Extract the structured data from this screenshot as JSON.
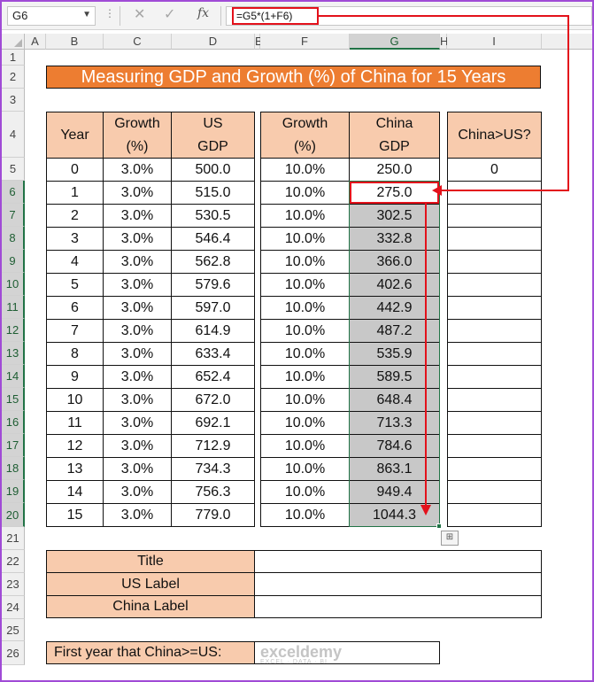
{
  "formula_bar": {
    "name_box": "G6",
    "cancel_icon": "✕",
    "enter_icon": "✓",
    "fx_label": "fx",
    "formula": "=G5*(1+F6)"
  },
  "columns": [
    "A",
    "B",
    "C",
    "D",
    "E",
    "F",
    "G",
    "H",
    "I"
  ],
  "rows": [
    "1",
    "2",
    "3",
    "4",
    "5",
    "6",
    "7",
    "8",
    "9",
    "10",
    "11",
    "12",
    "13",
    "14",
    "15",
    "16",
    "17",
    "18",
    "19",
    "20",
    "21",
    "22",
    "23",
    "24",
    "25",
    "26"
  ],
  "title": "Measuring GDP and Growth (%) of China for 15 Years",
  "headers": {
    "year": "Year",
    "growth_us_1": "Growth",
    "growth_us_2": "(%)",
    "us_gdp_1": "US",
    "us_gdp_2": "GDP",
    "growth_cn_1": "Growth",
    "growth_cn_2": "(%)",
    "cn_gdp_1": "China",
    "cn_gdp_2": "GDP",
    "china_gt_us": "China>US?"
  },
  "table": [
    {
      "year": "0",
      "us_growth": "3.0%",
      "us_gdp": "500.0",
      "cn_growth": "10.0%",
      "cn_gdp": "250.0",
      "china_gt_us": "0"
    },
    {
      "year": "1",
      "us_growth": "3.0%",
      "us_gdp": "515.0",
      "cn_growth": "10.0%",
      "cn_gdp": "275.0",
      "china_gt_us": ""
    },
    {
      "year": "2",
      "us_growth": "3.0%",
      "us_gdp": "530.5",
      "cn_growth": "10.0%",
      "cn_gdp": "302.5",
      "china_gt_us": ""
    },
    {
      "year": "3",
      "us_growth": "3.0%",
      "us_gdp": "546.4",
      "cn_growth": "10.0%",
      "cn_gdp": "332.8",
      "china_gt_us": ""
    },
    {
      "year": "4",
      "us_growth": "3.0%",
      "us_gdp": "562.8",
      "cn_growth": "10.0%",
      "cn_gdp": "366.0",
      "china_gt_us": ""
    },
    {
      "year": "5",
      "us_growth": "3.0%",
      "us_gdp": "579.6",
      "cn_growth": "10.0%",
      "cn_gdp": "402.6",
      "china_gt_us": ""
    },
    {
      "year": "6",
      "us_growth": "3.0%",
      "us_gdp": "597.0",
      "cn_growth": "10.0%",
      "cn_gdp": "442.9",
      "china_gt_us": ""
    },
    {
      "year": "7",
      "us_growth": "3.0%",
      "us_gdp": "614.9",
      "cn_growth": "10.0%",
      "cn_gdp": "487.2",
      "china_gt_us": ""
    },
    {
      "year": "8",
      "us_growth": "3.0%",
      "us_gdp": "633.4",
      "cn_growth": "10.0%",
      "cn_gdp": "535.9",
      "china_gt_us": ""
    },
    {
      "year": "9",
      "us_growth": "3.0%",
      "us_gdp": "652.4",
      "cn_growth": "10.0%",
      "cn_gdp": "589.5",
      "china_gt_us": ""
    },
    {
      "year": "10",
      "us_growth": "3.0%",
      "us_gdp": "672.0",
      "cn_growth": "10.0%",
      "cn_gdp": "648.4",
      "china_gt_us": ""
    },
    {
      "year": "11",
      "us_growth": "3.0%",
      "us_gdp": "692.1",
      "cn_growth": "10.0%",
      "cn_gdp": "713.3",
      "china_gt_us": ""
    },
    {
      "year": "12",
      "us_growth": "3.0%",
      "us_gdp": "712.9",
      "cn_growth": "10.0%",
      "cn_gdp": "784.6",
      "china_gt_us": ""
    },
    {
      "year": "13",
      "us_growth": "3.0%",
      "us_gdp": "734.3",
      "cn_growth": "10.0%",
      "cn_gdp": "863.1",
      "china_gt_us": ""
    },
    {
      "year": "14",
      "us_growth": "3.0%",
      "us_gdp": "756.3",
      "cn_growth": "10.0%",
      "cn_gdp": "949.4",
      "china_gt_us": ""
    },
    {
      "year": "15",
      "us_growth": "3.0%",
      "us_gdp": "779.0",
      "cn_growth": "10.0%",
      "cn_gdp": "1044.3",
      "china_gt_us": ""
    }
  ],
  "labels": {
    "title": "Title",
    "us_label": "US Label",
    "china_label": "China Label",
    "title_value": "",
    "us_label_value": "",
    "china_label_value": ""
  },
  "first_year": {
    "label": "First year that China>=US:",
    "value": ""
  },
  "watermark": {
    "name": "exceldemy",
    "tagline": "EXCEL · DATA · BI"
  },
  "colors": {
    "title_fill": "#ed7d31",
    "header_fill": "#f8cbad",
    "highlight": "#e3111b",
    "selection": "#c8c8c8"
  }
}
